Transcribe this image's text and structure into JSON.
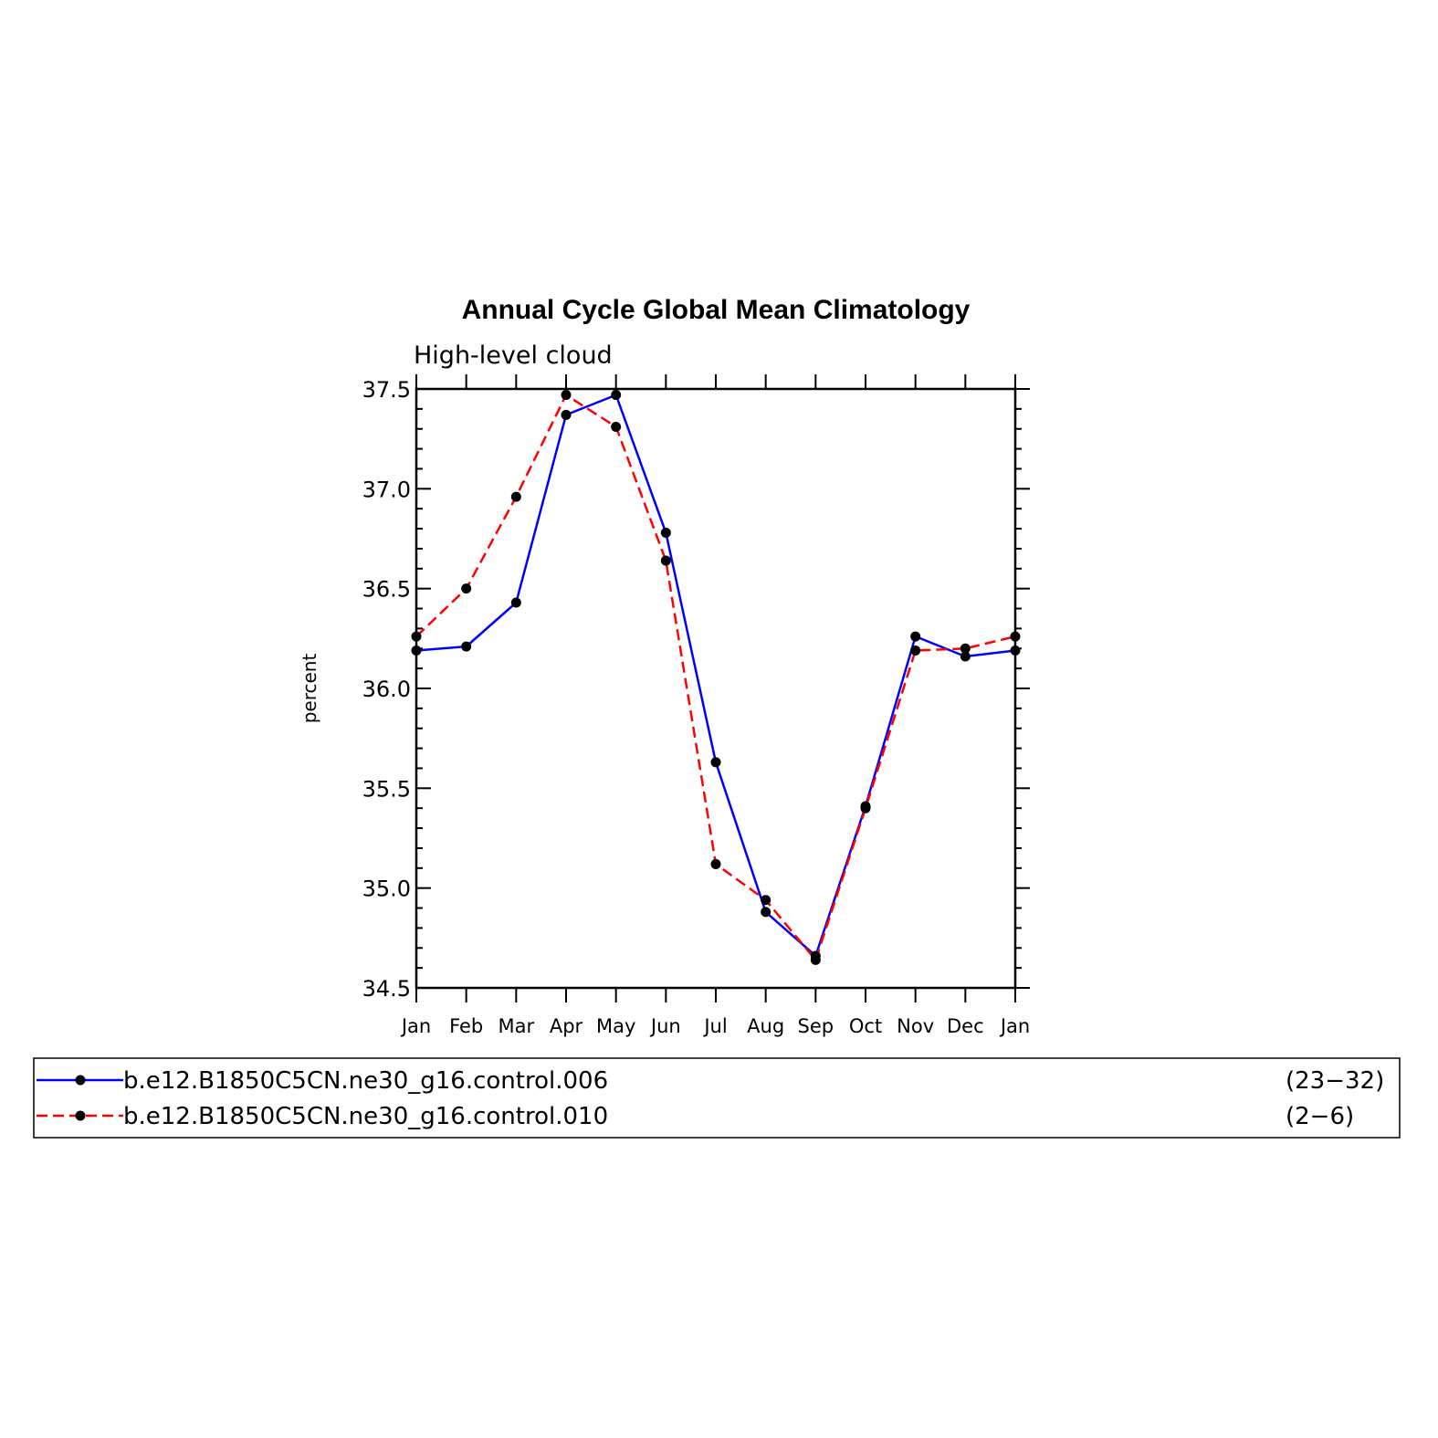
{
  "chart_data": {
    "type": "line",
    "title": "Annual Cycle Global Mean Climatology",
    "subtitle": "High-level cloud",
    "ylabel": "percent",
    "xlabel": "",
    "categories": [
      "Jan",
      "Feb",
      "Mar",
      "Apr",
      "May",
      "Jun",
      "Jul",
      "Aug",
      "Sep",
      "Oct",
      "Nov",
      "Dec",
      "Jan"
    ],
    "ylim": [
      34.5,
      37.5
    ],
    "yticks": [
      "37.5",
      "37.0",
      "36.5",
      "36.0",
      "35.5",
      "35.0",
      "34.5"
    ],
    "ytick_values": [
      37.5,
      37.0,
      36.5,
      36.0,
      35.5,
      35.0,
      34.5
    ],
    "legend_position": "bottom",
    "series": [
      {
        "name": "b.e12.B1850C5CN.ne30_g16.control.006",
        "years": "(23−32)",
        "color": "#0000ff",
        "dash": "solid",
        "values": [
          36.19,
          36.21,
          36.43,
          37.37,
          37.47,
          36.78,
          35.63,
          34.88,
          34.66,
          35.41,
          36.26,
          36.16,
          36.19
        ]
      },
      {
        "name": "b.e12.B1850C5CN.ne30_g16.control.010",
        "years": "(2−6)",
        "color": "#ff0000",
        "dash": "dashed",
        "values": [
          36.26,
          36.5,
          36.96,
          37.47,
          37.31,
          36.64,
          35.12,
          34.94,
          34.64,
          35.4,
          36.19,
          36.2,
          36.26
        ]
      }
    ]
  }
}
